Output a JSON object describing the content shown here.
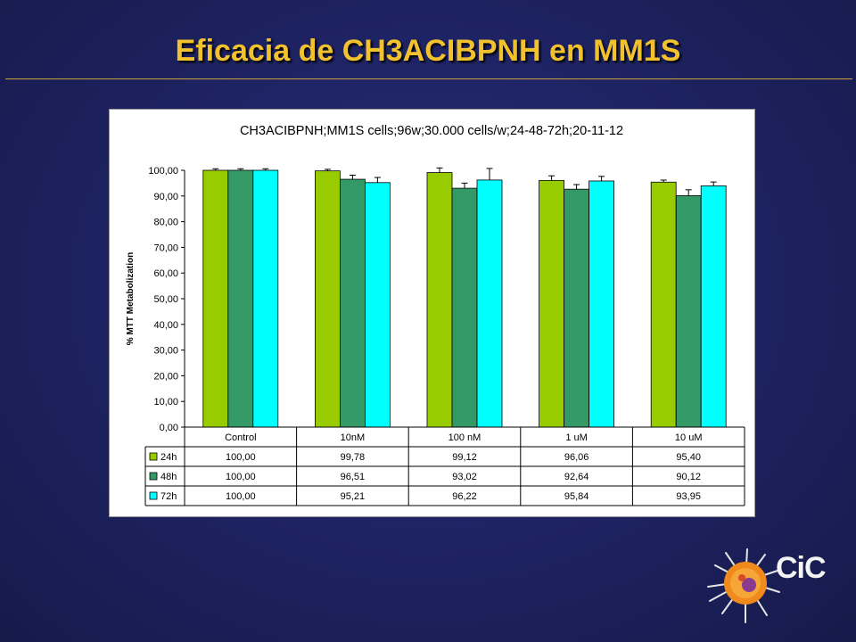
{
  "slide": {
    "title": "Eficacia de CH3ACIBPNH en MM1S",
    "logo_text": "CiC"
  },
  "colors": {
    "title": "#f2c12e",
    "series": [
      "#99cc00",
      "#339966",
      "#00ffff"
    ]
  },
  "chart_data": {
    "type": "bar",
    "title": "CH3ACIBPNH;MM1S cells;96w;30.000 cells/w;24-48-72h;20-11-12",
    "ylabel": "% MTT Metabolization",
    "xlabel": "",
    "ylim": [
      0,
      100
    ],
    "y_ticks": [
      "100,00",
      "90,00",
      "80,00",
      "70,00",
      "60,00",
      "50,00",
      "40,00",
      "30,00",
      "20,00",
      "10,00",
      "0,00"
    ],
    "categories": [
      "Control",
      "10nM",
      "100 nM",
      "1 uM",
      "10 uM"
    ],
    "series": [
      {
        "name": "24h",
        "values": [
          100.0,
          99.78,
          99.12,
          96.06,
          95.4
        ],
        "labels": [
          "100,00",
          "99,78",
          "99,12",
          "96,06",
          "95,40"
        ],
        "errors": [
          0.6,
          0.6,
          1.8,
          1.8,
          0.8
        ]
      },
      {
        "name": "48h",
        "values": [
          100.0,
          96.51,
          93.02,
          92.64,
          90.12
        ],
        "labels": [
          "100,00",
          "96,51",
          "93,02",
          "92,64",
          "90,12"
        ],
        "errors": [
          0.6,
          1.6,
          2.0,
          1.8,
          2.3
        ]
      },
      {
        "name": "72h",
        "values": [
          100.0,
          95.21,
          96.22,
          95.84,
          93.95
        ],
        "labels": [
          "100,00",
          "95,21",
          "96,22",
          "95,84",
          "93,95"
        ],
        "errors": [
          0.6,
          2.0,
          4.5,
          1.8,
          1.5
        ]
      }
    ],
    "grid": false,
    "legend": "data-table"
  }
}
